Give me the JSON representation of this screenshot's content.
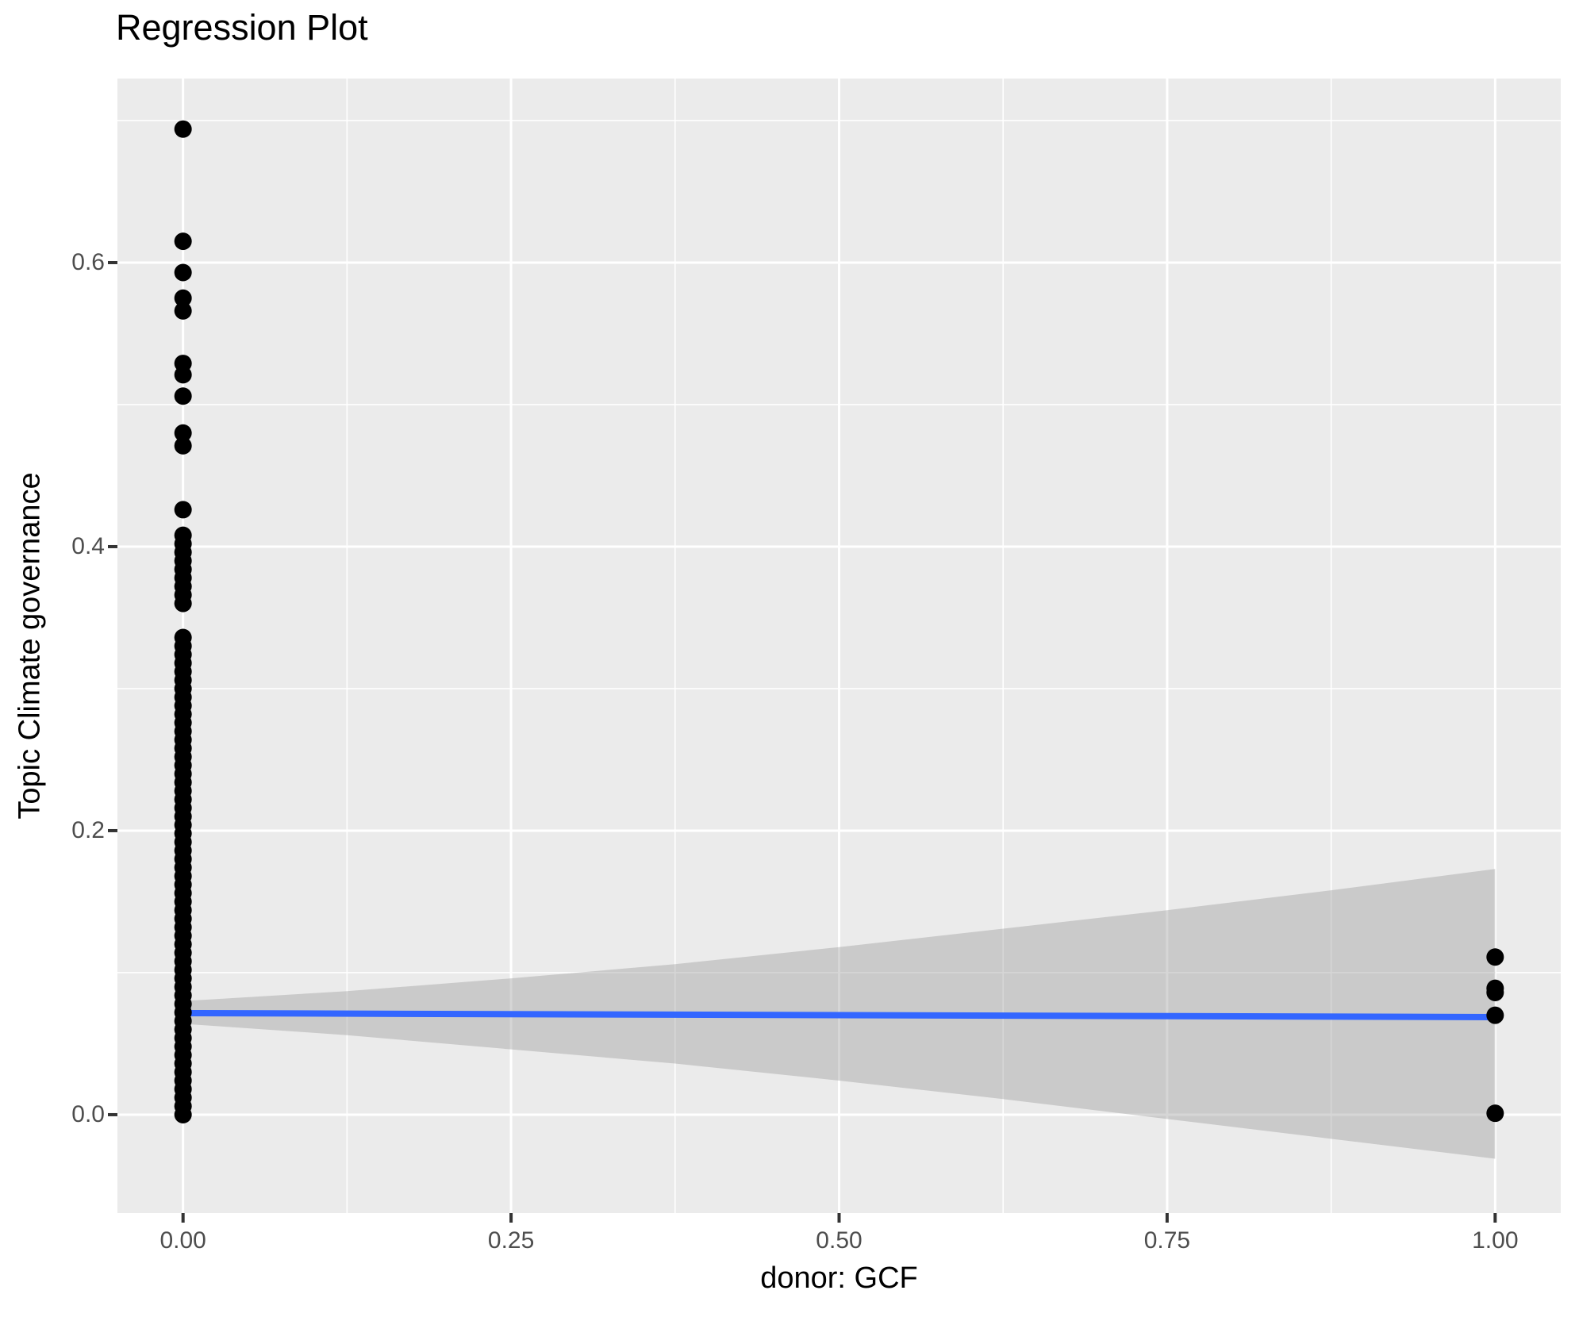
{
  "title": "Regression Plot",
  "chart_data": {
    "type": "scatter",
    "title": "Regression Plot",
    "xlabel": "donor: GCF",
    "ylabel": "Topic Climate governance",
    "xlim": [
      -0.05,
      1.05
    ],
    "ylim": [
      -0.0693,
      0.7296
    ],
    "grid": true,
    "legend": "none",
    "x_ticks": {
      "values": [
        0,
        0.25,
        0.5,
        0.75,
        1
      ],
      "labels": [
        "0.00",
        "0.25",
        "0.50",
        "0.75",
        "1.00"
      ]
    },
    "x_minor_gridlines": [
      0.125,
      0.375,
      0.625,
      0.875
    ],
    "y_ticks": {
      "values": [
        0,
        0.2,
        0.4,
        0.6
      ],
      "labels": [
        "0.0",
        "0.2",
        "0.4",
        "0.6"
      ]
    },
    "y_minor_gridlines": [
      0.1,
      0.3,
      0.5,
      0.7
    ],
    "series": [
      {
        "name": "observations-at-x0",
        "x_value": 0,
        "outlier_y": [
          0.694,
          0.615,
          0.593,
          0.575,
          0.566,
          0.529,
          0.521,
          0.506,
          0.48,
          0.471,
          0.426
        ],
        "dense_y_segments": [
          {
            "from": 0.36,
            "to": 0.411,
            "step": 0.006
          },
          {
            "from": 0.0,
            "to": 0.338,
            "step": 0.006
          }
        ]
      },
      {
        "name": "observations-at-x1",
        "x_value": 1,
        "y": [
          0.111,
          0.089,
          0.086,
          0.07,
          0.001
        ]
      }
    ],
    "regression_line": {
      "x": [
        0,
        1
      ],
      "y": [
        0.0715,
        0.0687
      ]
    },
    "confidence_band": {
      "x": [
        0,
        0.125,
        0.25,
        0.375,
        0.5,
        0.625,
        0.75,
        0.875,
        1
      ],
      "upper": [
        0.08,
        0.087,
        0.096,
        0.106,
        0.118,
        0.131,
        0.144,
        0.158,
        0.173
      ],
      "lower": [
        0.064,
        0.056,
        0.046,
        0.036,
        0.024,
        0.011,
        -0.003,
        -0.017,
        -0.031
      ]
    }
  },
  "style": {
    "figure_background": "#FFFFFF",
    "panel_background": "#EBEBEB",
    "gridline_color": "#FFFFFF",
    "confidence_band_fill": "#999999",
    "confidence_band_opacity": 0.4,
    "regression_line_color": "#3366FF",
    "point_color": "#000000",
    "tick_mark_color": "#333333",
    "tick_label_color": "#4D4D4D",
    "title_color": "#000000"
  }
}
